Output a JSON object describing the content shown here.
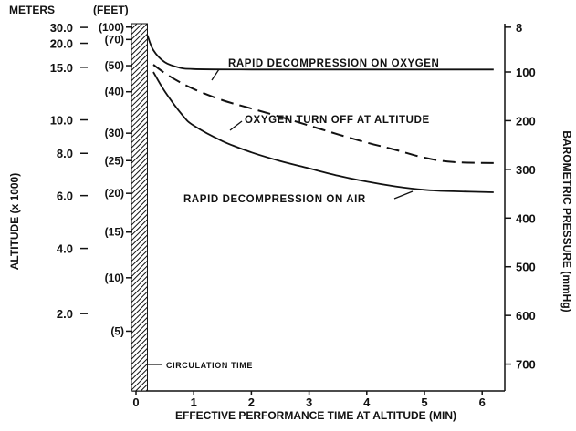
{
  "chart_data": {
    "type": "line",
    "x": {
      "label": "EFFECTIVE PERFORMANCE TIME AT ALTITUDE (MIN)",
      "range": [
        0,
        6.5
      ],
      "ticks": [
        0,
        1,
        2,
        3,
        4,
        5,
        6
      ],
      "tick_labels": [
        "0",
        "1",
        "2",
        "3",
        "4",
        "5",
        "6"
      ]
    },
    "y_left": {
      "label": "ALTITUDE (x 1000)",
      "units_header": "METERS",
      "scale": "pressure",
      "ticks_meters": [
        2.0,
        4.0,
        6.0,
        8.0,
        10.0,
        15.0,
        20.0,
        30.0
      ],
      "tick_labels_meters": [
        "2.0",
        "4.0",
        "6.0",
        "8.0",
        "10.0",
        "15.0",
        "20.0",
        "30.0"
      ],
      "feet_header": "(FEET)",
      "ticks_feet": [
        5,
        10,
        15,
        20,
        25,
        30,
        40,
        50,
        70,
        100
      ],
      "tick_labels_feet": [
        "(5)",
        "(10)",
        "(15)",
        "(20)",
        "(25)",
        "(30)",
        "(40)",
        "(50)",
        "(70)",
        "(100)"
      ]
    },
    "y_right": {
      "label": "BAROMETRIC PRESSURE (mmHg)",
      "range": [
        8,
        760
      ],
      "ticks": [
        8,
        100,
        200,
        300,
        400,
        500,
        600,
        700
      ],
      "tick_labels": [
        "8",
        "100",
        "200",
        "300",
        "400",
        "500",
        "600",
        "700"
      ]
    },
    "series": [
      {
        "name": "RAPID DECOMPRESSION ON OXYGEN",
        "style": "solid",
        "points": [
          [
            0.2,
            25
          ],
          [
            0.3,
            55
          ],
          [
            0.5,
            80
          ],
          [
            0.75,
            91
          ],
          [
            1.0,
            94
          ],
          [
            2,
            95
          ],
          [
            4,
            95
          ],
          [
            6.2,
            95
          ]
        ]
      },
      {
        "name": "OXYGEN TURN OFF AT ALTITUDE",
        "style": "dashed",
        "points": [
          [
            0.3,
            85
          ],
          [
            0.6,
            110
          ],
          [
            1.0,
            135
          ],
          [
            1.5,
            158
          ],
          [
            2,
            175
          ],
          [
            2.5,
            192
          ],
          [
            3,
            210
          ],
          [
            3.5,
            228
          ],
          [
            4,
            245
          ],
          [
            4.5,
            260
          ],
          [
            5,
            276
          ],
          [
            5.5,
            285
          ],
          [
            6.2,
            287
          ]
        ]
      },
      {
        "name": "RAPID DECOMPRESSION ON AIR",
        "style": "solid",
        "points": [
          [
            0.3,
            100
          ],
          [
            0.5,
            140
          ],
          [
            0.8,
            188
          ],
          [
            1.0,
            210
          ],
          [
            1.5,
            242
          ],
          [
            2,
            265
          ],
          [
            2.5,
            283
          ],
          [
            3,
            298
          ],
          [
            3.5,
            313
          ],
          [
            4,
            325
          ],
          [
            4.5,
            335
          ],
          [
            5,
            342
          ],
          [
            5.5,
            345
          ],
          [
            6.2,
            347
          ]
        ]
      }
    ],
    "annotations": [
      {
        "text": "RAPID DECOMPRESSION ON OXYGEN",
        "target": "RAPID DECOMPRESSION ON OXYGEN"
      },
      {
        "text": "OXYGEN TURN OFF AT ALTITUDE",
        "target": "OXYGEN TURN OFF AT ALTITUDE"
      },
      {
        "text": "RAPID DECOMPRESSION ON AIR",
        "target": "RAPID DECOMPRESSION ON AIR"
      },
      {
        "text": "CIRCULATION TIME",
        "target": "hatched band 0 to 0.15 min"
      }
    ],
    "shaded_region": {
      "label": "CIRCULATION TIME",
      "x_range": [
        0,
        0.15
      ],
      "pattern": "hatched"
    }
  }
}
